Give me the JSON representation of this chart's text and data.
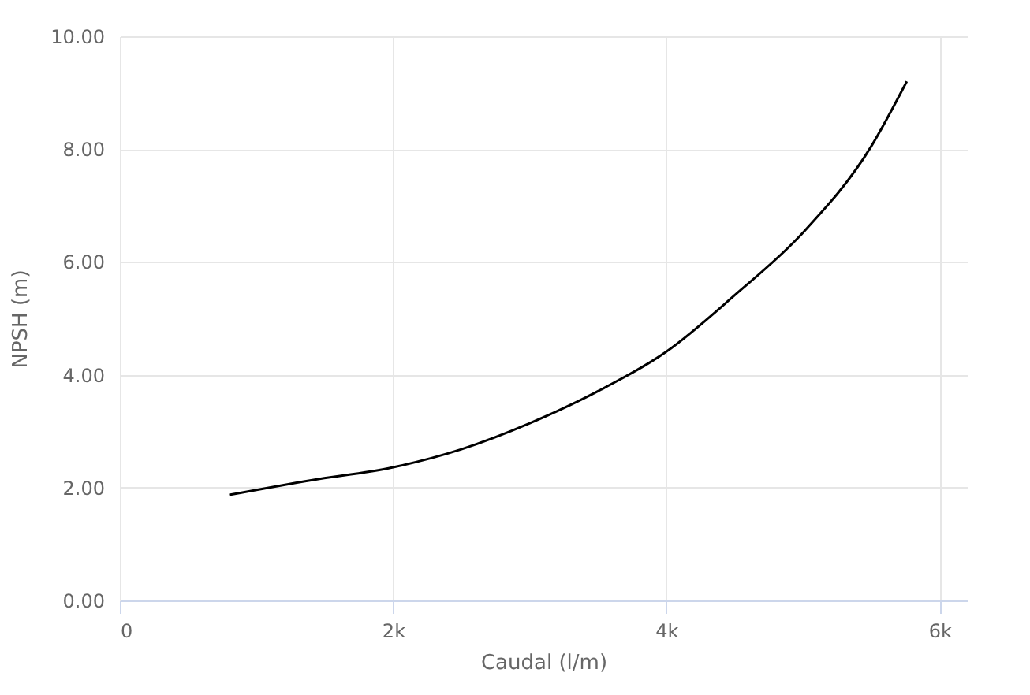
{
  "chart_data": {
    "type": "line",
    "xlabel": "Caudal (l/m)",
    "ylabel": "NPSH (m)",
    "x": [
      800,
      1400,
      2000,
      2500,
      3000,
      3500,
      4000,
      4500,
      5000,
      5500,
      5760
    ],
    "series": [
      {
        "color": "#000000",
        "values": [
          1.87,
          2.13,
          2.36,
          2.68,
          3.14,
          3.71,
          4.41,
          5.41,
          6.52,
          8.05,
          9.2
        ]
      }
    ],
    "xlim": [
      0,
      6200
    ],
    "xticks": [
      0,
      {
        "value": 2000,
        "label": "2k"
      },
      {
        "value": 4000,
        "label": "4k"
      },
      {
        "value": 6000,
        "label": "6k"
      }
    ],
    "ylim": [
      0,
      10
    ],
    "yticks": [
      {
        "value": 0,
        "label": "0.00"
      },
      {
        "value": 2,
        "label": "2.00"
      },
      {
        "value": 4,
        "label": "4.00"
      },
      {
        "value": 6,
        "label": "6.00"
      },
      {
        "value": 8,
        "label": "8.00"
      },
      {
        "value": 10,
        "label": "10.00"
      }
    ],
    "grid": true,
    "marker": "none",
    "line_style": "solid"
  }
}
